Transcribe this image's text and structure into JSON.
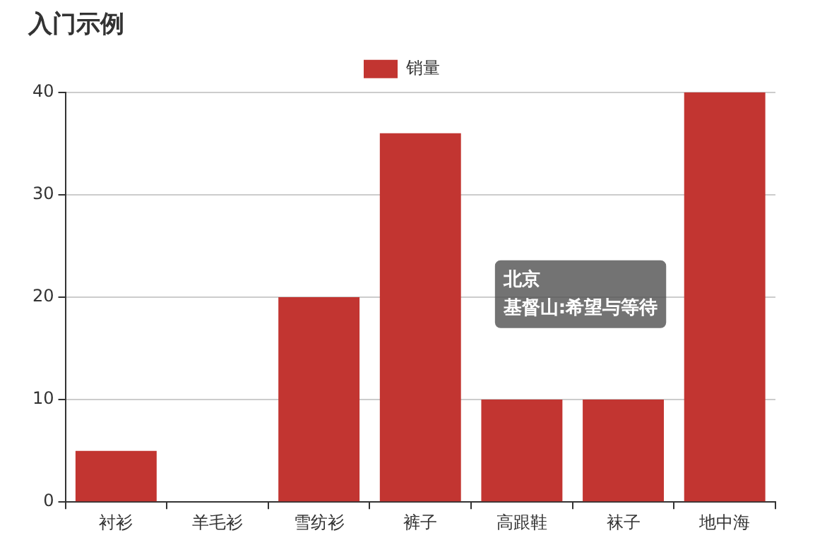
{
  "chart_data": {
    "type": "bar",
    "title": "入门示例",
    "categories": [
      "衬衫",
      "羊毛衫",
      "雪纺衫",
      "裤子",
      "高跟鞋",
      "袜子",
      "地中海"
    ],
    "series": [
      {
        "name": "销量",
        "color": "#c23531",
        "values": [
          5,
          0,
          20,
          36,
          10,
          10,
          40
        ]
      }
    ],
    "ylim": [
      0,
      40
    ],
    "yticks": [
      0,
      10,
      20,
      30,
      40
    ],
    "grid": "y",
    "legend": "top",
    "annotations": [
      "北京",
      "基督山:希望与等待"
    ]
  }
}
